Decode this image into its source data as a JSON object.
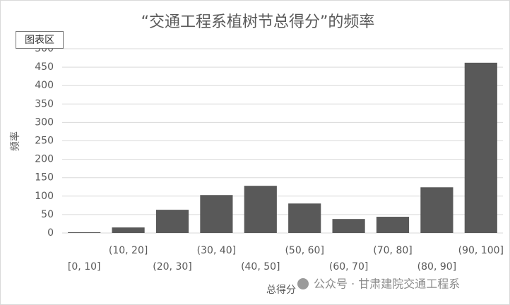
{
  "chart_data": {
    "type": "bar",
    "title": "“交通工程系植树节总得分”的频率",
    "y_label": "频率",
    "x_label": "总得分",
    "categories": [
      "[0, 10]",
      "(10, 20]",
      "(20, 30]",
      "(30, 40]",
      "(40, 50]",
      "(50, 60]",
      "(60, 70]",
      "(70, 80]",
      "(80, 90]",
      "(90, 100]"
    ],
    "values": [
      2,
      15,
      63,
      103,
      128,
      80,
      38,
      44,
      124,
      462
    ],
    "color": "#595959",
    "ylim": [
      0,
      500
    ],
    "yticks": [
      0,
      50,
      100,
      150,
      200,
      250,
      300,
      350,
      400,
      450,
      500
    ],
    "grid": true
  },
  "ui": {
    "tooltip": "图表区",
    "watermark": "公众号 · 甘肃建院交通工程系"
  }
}
